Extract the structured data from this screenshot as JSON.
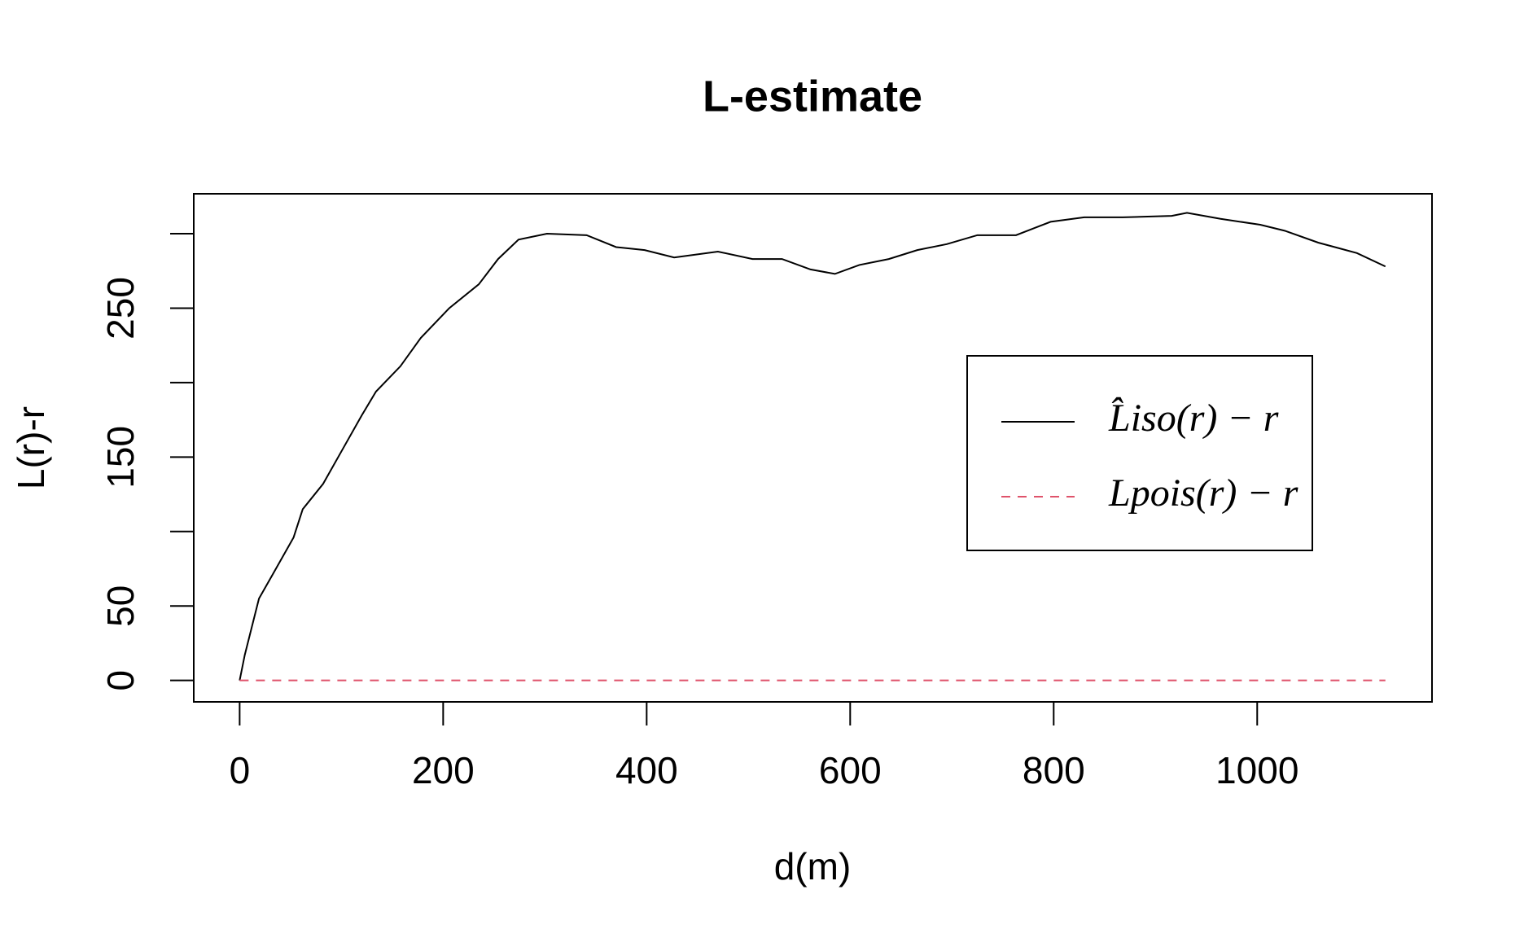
{
  "chart_data": {
    "type": "line",
    "title": "L-estimate",
    "xlabel": "d(m)",
    "ylabel": "L(r)-r",
    "xlim": [
      -45.1,
      1171.8
    ],
    "ylim": [
      -14.4,
      326.8
    ],
    "xticks": [
      0,
      200,
      400,
      600,
      800,
      1000
    ],
    "yticks": [
      0,
      50,
      {
        "value": 100,
        "label": null
      },
      150,
      {
        "value": 200,
        "label": null
      },
      250,
      {
        "value": 300,
        "label": null
      }
    ],
    "grid": false,
    "legend": "right",
    "series": [
      {
        "name": "L̂iso(r) − r",
        "color": "#000000",
        "dash": false,
        "x": [
          0,
          5,
          19,
          34,
          53,
          62,
          82,
          101,
          120,
          134,
          158,
          178,
          206,
          235,
          254,
          274,
          302,
          341,
          370,
          398,
          427,
          470,
          504,
          533,
          561,
          585,
          609,
          638,
          666,
          695,
          725,
          763,
          797,
          830,
          868,
          916,
          931,
          964,
          1003,
          1027,
          1060,
          1098,
          1126
        ],
        "values": [
          0,
          17,
          55,
          73,
          96,
          115,
          132,
          155,
          178,
          194,
          211,
          230,
          250,
          266,
          283,
          296,
          300,
          299,
          291,
          289,
          284,
          288,
          283,
          283,
          276,
          273,
          279,
          283,
          289,
          293,
          299,
          299,
          308,
          311,
          311,
          312,
          314,
          310,
          306,
          302,
          294,
          287,
          278
        ]
      },
      {
        "name": "Lpois(r) − r",
        "color": "#df536b",
        "dash": true,
        "x": [
          0,
          1126
        ],
        "values": [
          0,
          0
        ]
      }
    ]
  }
}
